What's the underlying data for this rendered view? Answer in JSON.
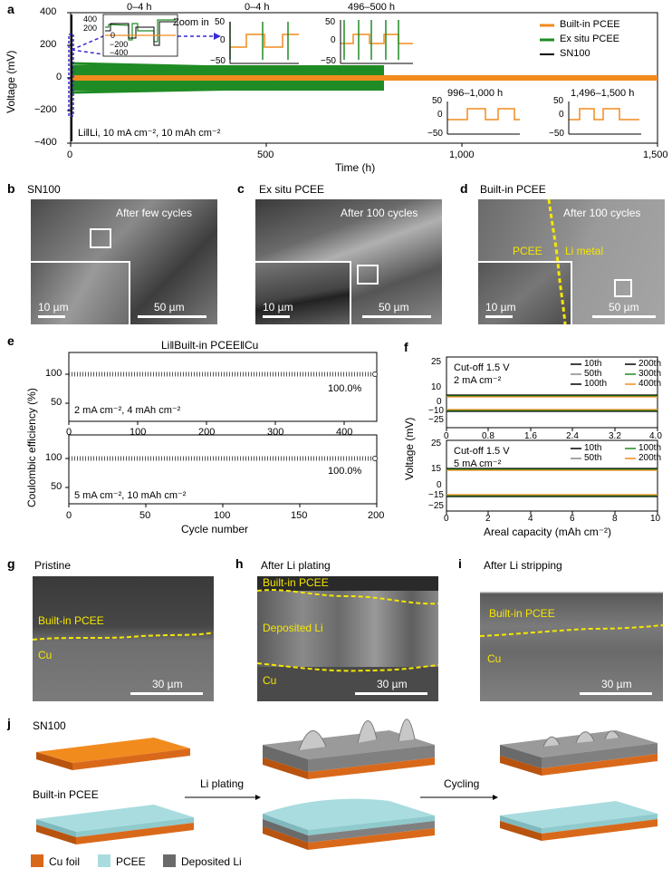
{
  "panel_labels": {
    "a": "a",
    "b": "b",
    "c": "c",
    "d": "d",
    "e": "e",
    "f": "f",
    "g": "g",
    "h": "h",
    "i": "i",
    "j": "j"
  },
  "colors": {
    "builtin": "#f28b1e",
    "exsitu": "#1f8b24",
    "sn100": "#000000",
    "zoom": "#3a2ad4",
    "pcee": "#a9dcdf",
    "cu": "#d9691a",
    "li": "#8a8a8a",
    "sem_yellow": "#f5e600"
  },
  "a": {
    "ylabel": "Voltage (mV)",
    "xlabel": "Time (h)",
    "yticks": [
      "400",
      "200",
      "0",
      "−200",
      "−400"
    ],
    "xticks": [
      "0",
      "500",
      "1,000",
      "1,500"
    ],
    "condition": "Li‖Li, 10 mA cm⁻², 10 mAh cm⁻²",
    "zoom_label": "Zoom in",
    "legend": [
      "Built-in PCEE",
      "Ex situ PCEE",
      "SN100"
    ],
    "inset1": {
      "title": "0–4 h",
      "yticks": [
        "400",
        "200",
        "0",
        "−200",
        "−400"
      ]
    },
    "inset2": {
      "title": "0–4 h",
      "yticks": [
        "50",
        "0",
        "−50"
      ]
    },
    "inset3": {
      "title": "496–500 h",
      "yticks": [
        "50",
        "0",
        "−50"
      ]
    },
    "inset4": {
      "title": "996–1,000 h",
      "yticks": [
        "50",
        "0",
        "−50"
      ]
    },
    "inset5": {
      "title": "1,496–1,500 h",
      "yticks": [
        "50",
        "0",
        "−50"
      ]
    }
  },
  "b": {
    "title": "SN100",
    "caption": "After few cycles",
    "scale_small": "10 µm",
    "scale_large": "50 µm"
  },
  "c": {
    "title": "Ex situ PCEE",
    "caption": "After 100 cycles",
    "scale_small": "10 µm",
    "scale_large": "50 µm"
  },
  "d": {
    "title": "Built-in PCEE",
    "caption": "After 100 cycles",
    "label_pcee": "PCEE",
    "label_li": "Li metal",
    "scale_small": "10 µm",
    "scale_large": "50 µm"
  },
  "e": {
    "title": "Li‖Built-in PCEE‖Cu",
    "ylabel": "Coulombic efficiency (%)",
    "xlabel": "Cycle number",
    "top": {
      "condition": "2 mA cm⁻², 4 mAh cm⁻²",
      "value_label": "100.0%",
      "xticks": [
        "0",
        "100",
        "200",
        "300",
        "400"
      ],
      "yticks": [
        "100",
        "50"
      ]
    },
    "bottom": {
      "condition": "5 mA cm⁻², 10 mAh cm⁻²",
      "value_label": "100.0%",
      "xticks": [
        "0",
        "50",
        "100",
        "150",
        "200"
      ],
      "yticks": [
        "100",
        "50"
      ]
    }
  },
  "f": {
    "ylabel": "Voltage (mV)",
    "xlabel": "Areal capacity (mAh cm⁻²)",
    "top": {
      "cutoff": "Cut-off 1.5 V",
      "current": "2 mA cm⁻²",
      "legend": [
        "10th",
        "200th",
        "50th",
        "300th",
        "100th",
        "400th"
      ],
      "xticks": [
        "0",
        "0.8",
        "1.6",
        "2.4",
        "3.2",
        "4.0"
      ],
      "yticks": [
        "25",
        "10",
        "0",
        "−10",
        "−25"
      ]
    },
    "bottom": {
      "cutoff": "Cut-off 1.5 V",
      "current": "5 mA cm⁻²",
      "legend": [
        "10th",
        "100th",
        "50th",
        "200th"
      ],
      "xticks": [
        "0",
        "2",
        "4",
        "6",
        "8",
        "10"
      ],
      "yticks": [
        "25",
        "15",
        "0",
        "−15",
        "−25"
      ]
    }
  },
  "g": {
    "title": "Pristine",
    "label_pcee": "Built-in PCEE",
    "label_cu": "Cu",
    "scale": "30 µm"
  },
  "h": {
    "title": "After Li plating",
    "label_pcee": "Built-in PCEE",
    "label_li": "Deposited Li",
    "label_cu": "Cu",
    "scale": "30 µm"
  },
  "i": {
    "title": "After Li stripping",
    "label_pcee": "Built-in PCEE",
    "label_cu": "Cu",
    "scale": "30 µm"
  },
  "j": {
    "label_sn100": "SN100",
    "label_builtin": "Built-in PCEE",
    "arrow1": "Li plating",
    "arrow2": "Cycling",
    "legend": [
      "Cu foil",
      "PCEE",
      "Deposited Li"
    ]
  },
  "chart_data": [
    {
      "type": "line",
      "title": "",
      "xlabel": "Time (h)",
      "ylabel": "Voltage (mV)",
      "xlim": [
        0,
        1500
      ],
      "ylim": [
        -400,
        400
      ],
      "series": [
        {
          "name": "Built-in PCEE",
          "x": [
            0,
            1500
          ],
          "amplitude_mV": [
            10,
            10
          ]
        },
        {
          "name": "Ex situ PCEE",
          "x": [
            0,
            800
          ],
          "amplitude_mV": [
            60,
            40
          ]
        },
        {
          "name": "SN100",
          "x": [
            0,
            4
          ],
          "amplitude_mV": [
            300,
            300
          ]
        }
      ],
      "legend": "top-right",
      "grid": false
    },
    {
      "type": "scatter",
      "title": "Li‖Built-in PCEE‖Cu",
      "xlabel": "Cycle number",
      "ylabel": "Coulombic efficiency (%)",
      "xlim": [
        0,
        430
      ],
      "ylim": [
        30,
        115
      ],
      "series": [
        {
          "name": "2 mA cm⁻², 4 mAh cm⁻²",
          "x": [
            0,
            430
          ],
          "y": [
            100,
            100
          ]
        }
      ]
    },
    {
      "type": "scatter",
      "xlabel": "Cycle number",
      "ylabel": "Coulombic efficiency (%)",
      "xlim": [
        0,
        200
      ],
      "ylim": [
        30,
        115
      ],
      "series": [
        {
          "name": "5 mA cm⁻², 10 mAh cm⁻²",
          "x": [
            0,
            200
          ],
          "y": [
            100,
            100
          ]
        }
      ]
    },
    {
      "type": "line",
      "xlabel": "Areal capacity (mAh cm⁻²)",
      "ylabel": "Voltage (mV)",
      "xlim": [
        0,
        4.0
      ],
      "ylim": [
        -25,
        25
      ],
      "series": [
        {
          "name": "10th",
          "y": [
            11,
            -11
          ]
        },
        {
          "name": "50th",
          "y": [
            11,
            -11
          ]
        },
        {
          "name": "100th",
          "y": [
            11,
            -11
          ]
        },
        {
          "name": "200th",
          "y": [
            11,
            -11
          ]
        },
        {
          "name": "300th",
          "y": [
            11,
            -11
          ]
        },
        {
          "name": "400th",
          "y": [
            12,
            -12
          ]
        }
      ]
    },
    {
      "type": "line",
      "xlabel": "Areal capacity (mAh cm⁻²)",
      "ylabel": "Voltage (mV)",
      "xlim": [
        0,
        10
      ],
      "ylim": [
        -25,
        25
      ],
      "series": [
        {
          "name": "10th",
          "y": [
            16,
            -16
          ]
        },
        {
          "name": "50th",
          "y": [
            16,
            -16
          ]
        },
        {
          "name": "100th",
          "y": [
            17,
            -17
          ]
        },
        {
          "name": "200th",
          "y": [
            17,
            -17
          ]
        }
      ]
    }
  ]
}
